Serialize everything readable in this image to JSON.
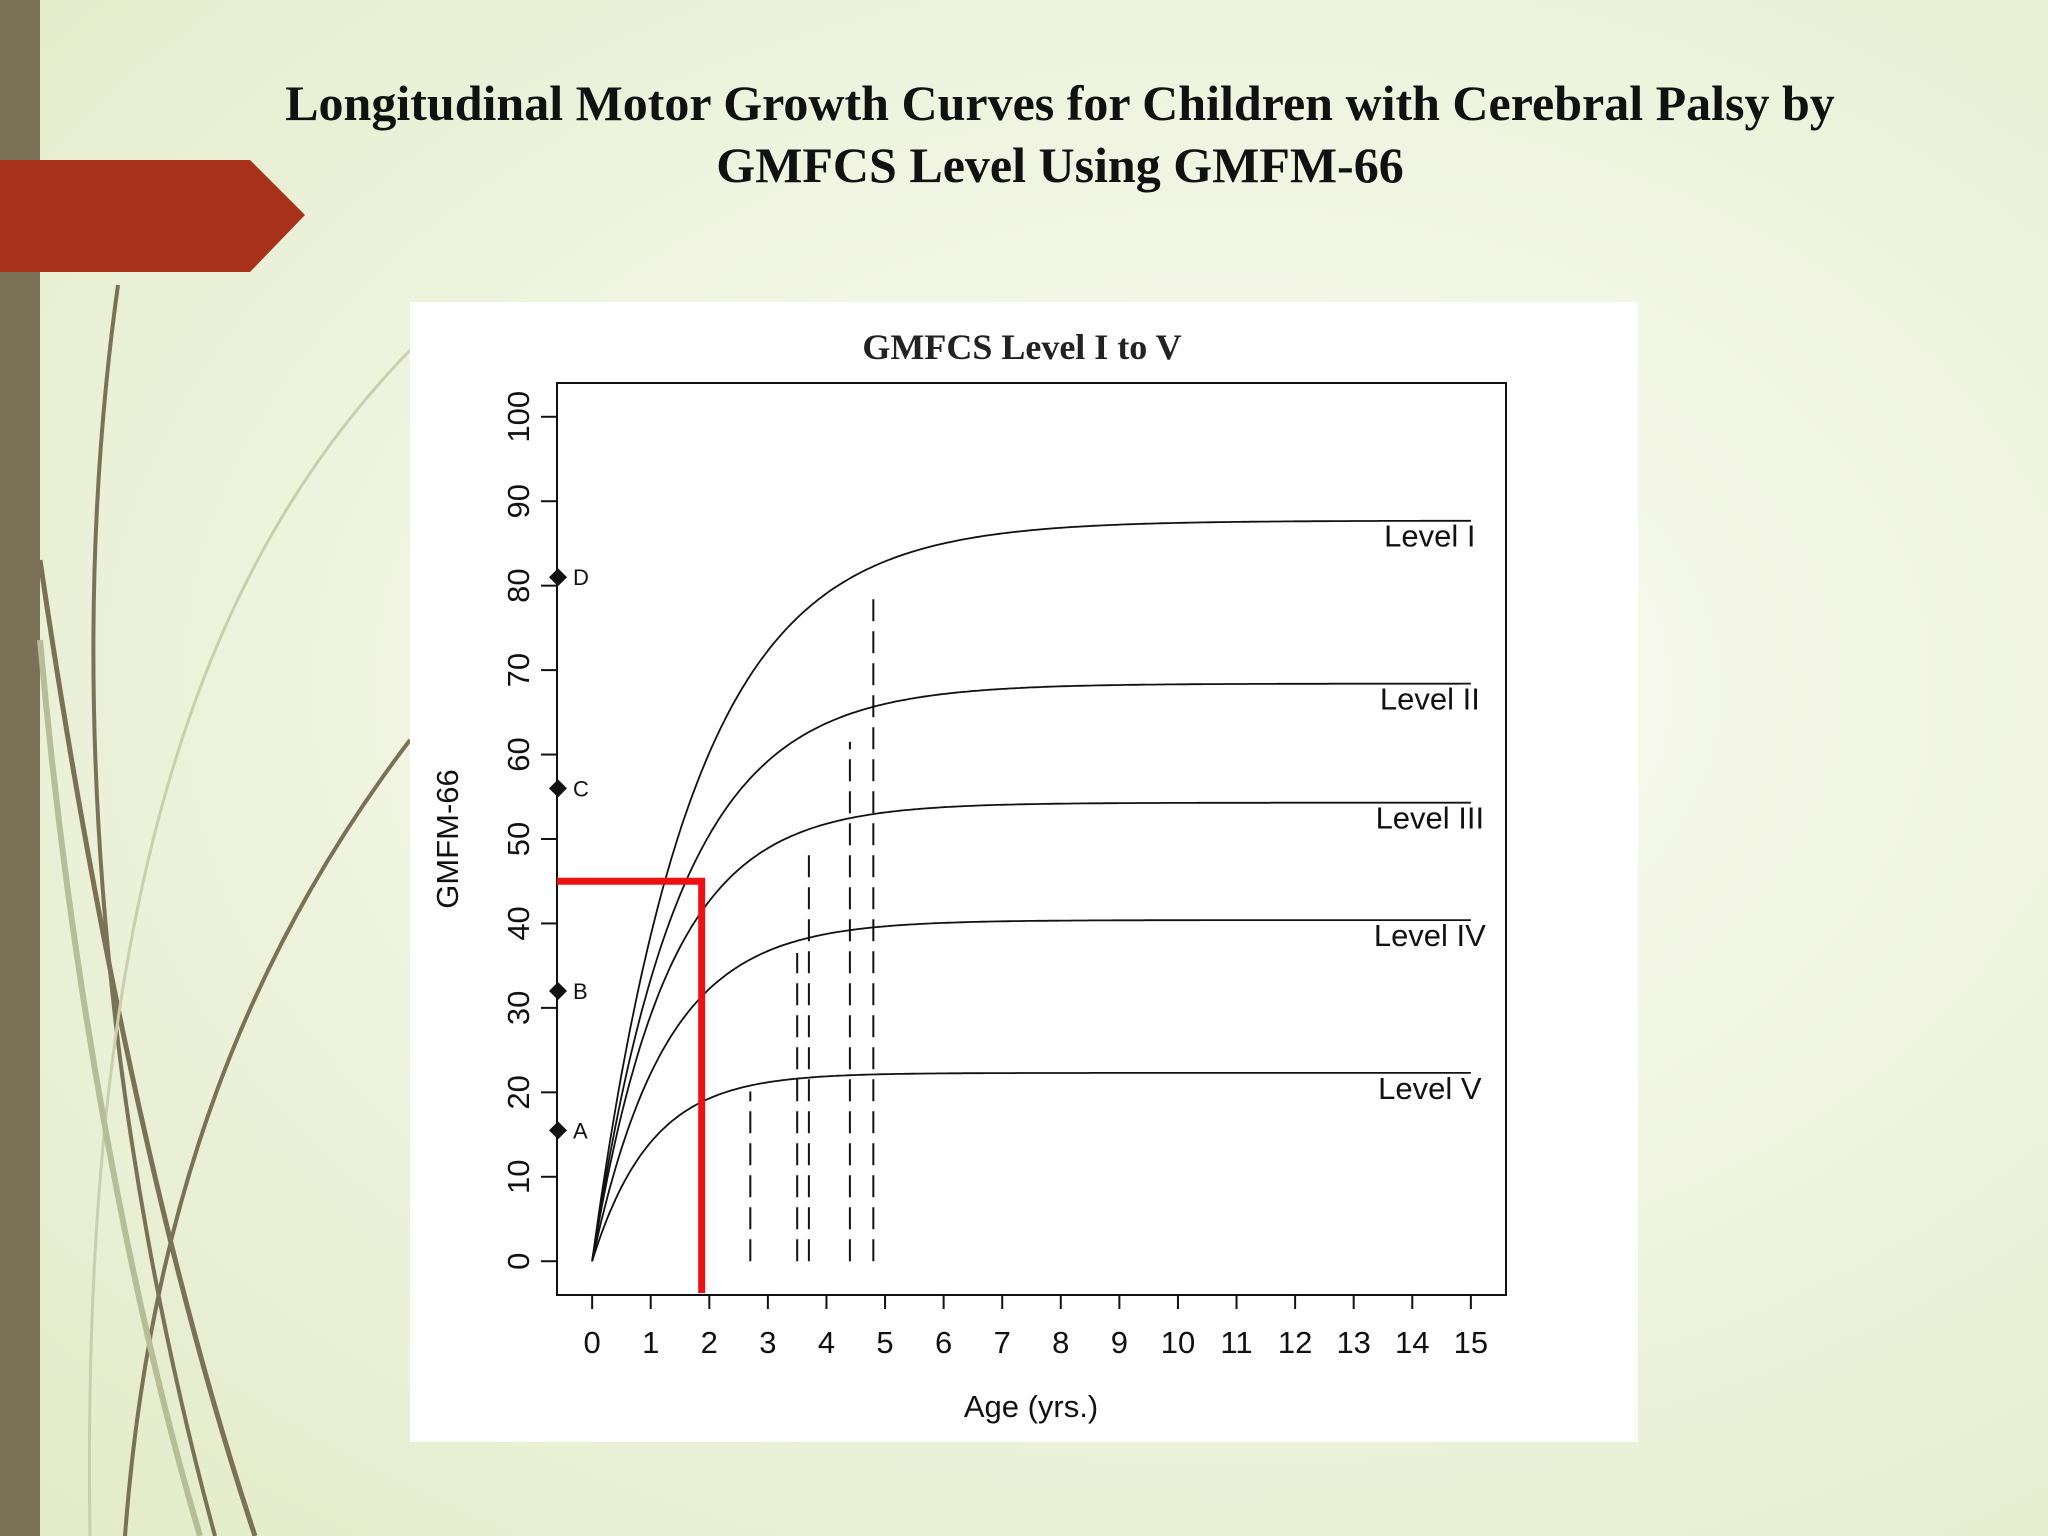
{
  "slide": {
    "title_line1": "Longitudinal Motor Growth Curves for Children with Cerebral Palsy by",
    "title_line2": "GMFCS Level Using GMFM-66"
  },
  "colors": {
    "accent_bar": "#7a7156",
    "arrow_banner": "#a83219",
    "highlight_line": "#ee1111"
  },
  "chart_data": {
    "type": "line",
    "title": "GMFCS Level I to V",
    "xlabel": "Age (yrs.)",
    "ylabel": "GMFM-66",
    "xlim": [
      -0.6,
      15.6
    ],
    "ylim": [
      -4,
      104
    ],
    "x_ticks": [
      "0",
      "1",
      "2",
      "3",
      "4",
      "5",
      "6",
      "7",
      "8",
      "9",
      "10",
      "11",
      "12",
      "13",
      "14",
      "15"
    ],
    "y_ticks": [
      "0",
      "10",
      "20",
      "30",
      "40",
      "50",
      "60",
      "70",
      "80",
      "90",
      "100"
    ],
    "series": [
      {
        "name": "Level I",
        "limit": 87.7,
        "rate": 0.58,
        "x_at_90pct": 4.8
      },
      {
        "name": "Level II",
        "limit": 68.4,
        "rate": 0.67,
        "x_at_90pct": 4.4
      },
      {
        "name": "Level III",
        "limit": 54.3,
        "rate": 0.77,
        "x_at_90pct": 3.7
      },
      {
        "name": "Level IV",
        "limit": 40.4,
        "rate": 0.8,
        "x_at_90pct": 3.5
      },
      {
        "name": "Level V",
        "limit": 22.3,
        "rate": 1.0,
        "x_at_90pct": 2.7
      }
    ],
    "dashed_lines": [
      {
        "x": 2.7,
        "y_top": 20.1
      },
      {
        "x": 3.5,
        "y_top": 36.5
      },
      {
        "x": 3.7,
        "y_top": 49.0
      },
      {
        "x": 4.4,
        "y_top": 61.5
      },
      {
        "x": 4.8,
        "y_top": 79.0
      }
    ],
    "markers": [
      {
        "label": "A",
        "y": 15.5
      },
      {
        "label": "B",
        "y": 32.0
      },
      {
        "label": "C",
        "y": 56.0
      },
      {
        "label": "D",
        "y": 81.0
      }
    ],
    "highlight": {
      "x": 1.87,
      "y": 45
    }
  }
}
